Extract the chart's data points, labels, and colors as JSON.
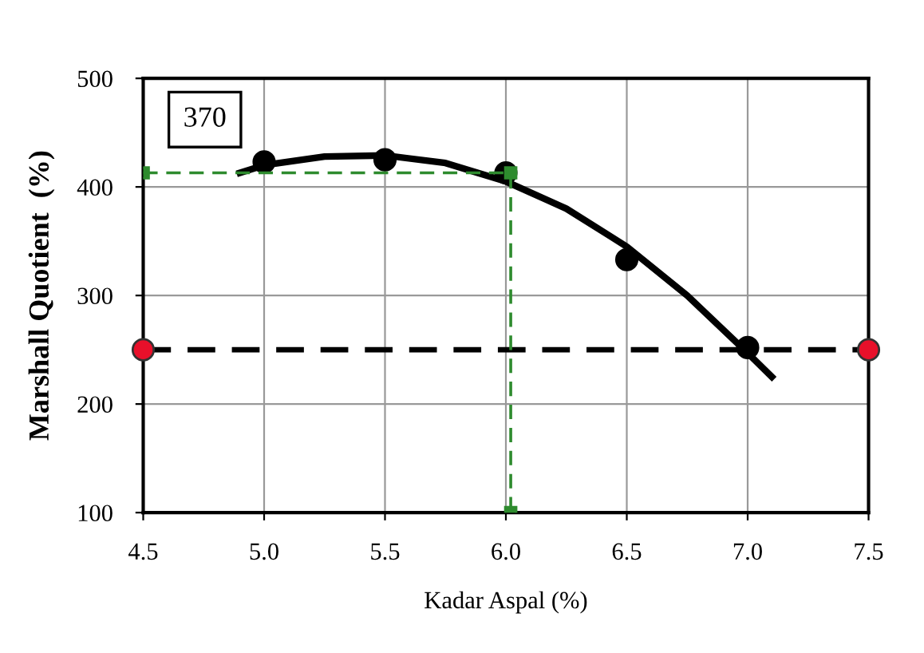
{
  "chart_data": {
    "type": "scatter",
    "xlabel": "Kadar Aspal (%)",
    "ylabel": "Marshall Quotient  (%)",
    "xlim": [
      4.5,
      7.5
    ],
    "ylim": [
      100,
      500
    ],
    "xticks": [
      {
        "value": 4.5,
        "label": "4.5"
      },
      {
        "value": 5.0,
        "label": "5.0"
      },
      {
        "value": 5.5,
        "label": "5.5"
      },
      {
        "value": 6.0,
        "label": "6.0"
      },
      {
        "value": 6.5,
        "label": "6.5"
      },
      {
        "value": 7.0,
        "label": "7.0"
      },
      {
        "value": 7.5,
        "label": "7.5"
      }
    ],
    "yticks": [
      100,
      200,
      300,
      400,
      500
    ],
    "grid": true,
    "annotations": [
      "370"
    ],
    "ref_lines": [
      {
        "axis": "y",
        "value": 250,
        "color": "#000000",
        "line_style": "dashed"
      }
    ],
    "series": [
      {
        "type": "line",
        "color": "#000000",
        "marker": "none",
        "line_style": "solid",
        "x": [
          4.9,
          5.0,
          5.25,
          5.5,
          5.75,
          6.0,
          6.25,
          6.5,
          6.75,
          7.0,
          7.1
        ],
        "values": [
          413,
          420,
          428,
          429,
          422,
          405,
          380,
          345,
          300,
          247,
          225
        ]
      },
      {
        "color": "#000000",
        "marker": "circle",
        "x": [
          5.0,
          5.5,
          6.0,
          6.5,
          7.0
        ],
        "values": [
          423,
          425,
          413,
          333,
          252
        ]
      },
      {
        "type": "line",
        "color": "#2e8b2e",
        "marker": "square",
        "line_style": "dashed",
        "x": [
          4.5,
          6.02,
          6.02
        ],
        "values": [
          413,
          413,
          100
        ]
      },
      {
        "color": "#e8102a",
        "marker": "circle",
        "x": [
          4.5,
          7.5
        ],
        "values": [
          250,
          250
        ]
      }
    ]
  }
}
